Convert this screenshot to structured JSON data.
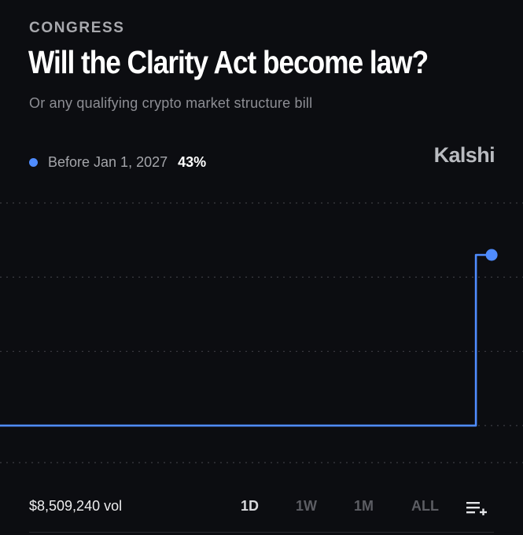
{
  "header": {
    "category": "CONGRESS",
    "title": "Will the Clarity Act become law?",
    "subtitle": "Or any qualifying crypto market structure bill"
  },
  "brand": {
    "name": "Kalshi"
  },
  "legend": {
    "label": "Before Jan 1, 2027",
    "value": "43%",
    "color": "#4f8cff"
  },
  "footer": {
    "volume": "$8,509,240 vol",
    "ranges": [
      {
        "label": "1D",
        "active": true
      },
      {
        "label": "1W",
        "active": false
      },
      {
        "label": "1M",
        "active": false
      },
      {
        "label": "ALL",
        "active": false
      }
    ],
    "list_icon": "list-add-icon"
  },
  "chart_data": {
    "type": "line",
    "series": [
      {
        "name": "Before Jan 1, 2027",
        "color": "#4f8cff",
        "points": [
          {
            "x": 0.0,
            "y": 20
          },
          {
            "x": 0.91,
            "y": 20
          },
          {
            "x": 0.91,
            "y": 43
          },
          {
            "x": 0.94,
            "y": 43
          }
        ]
      }
    ],
    "ylim": [
      15,
      50
    ],
    "grid": true,
    "gridline_values": [
      50,
      40,
      30,
      20,
      15
    ],
    "last_value": 43
  }
}
